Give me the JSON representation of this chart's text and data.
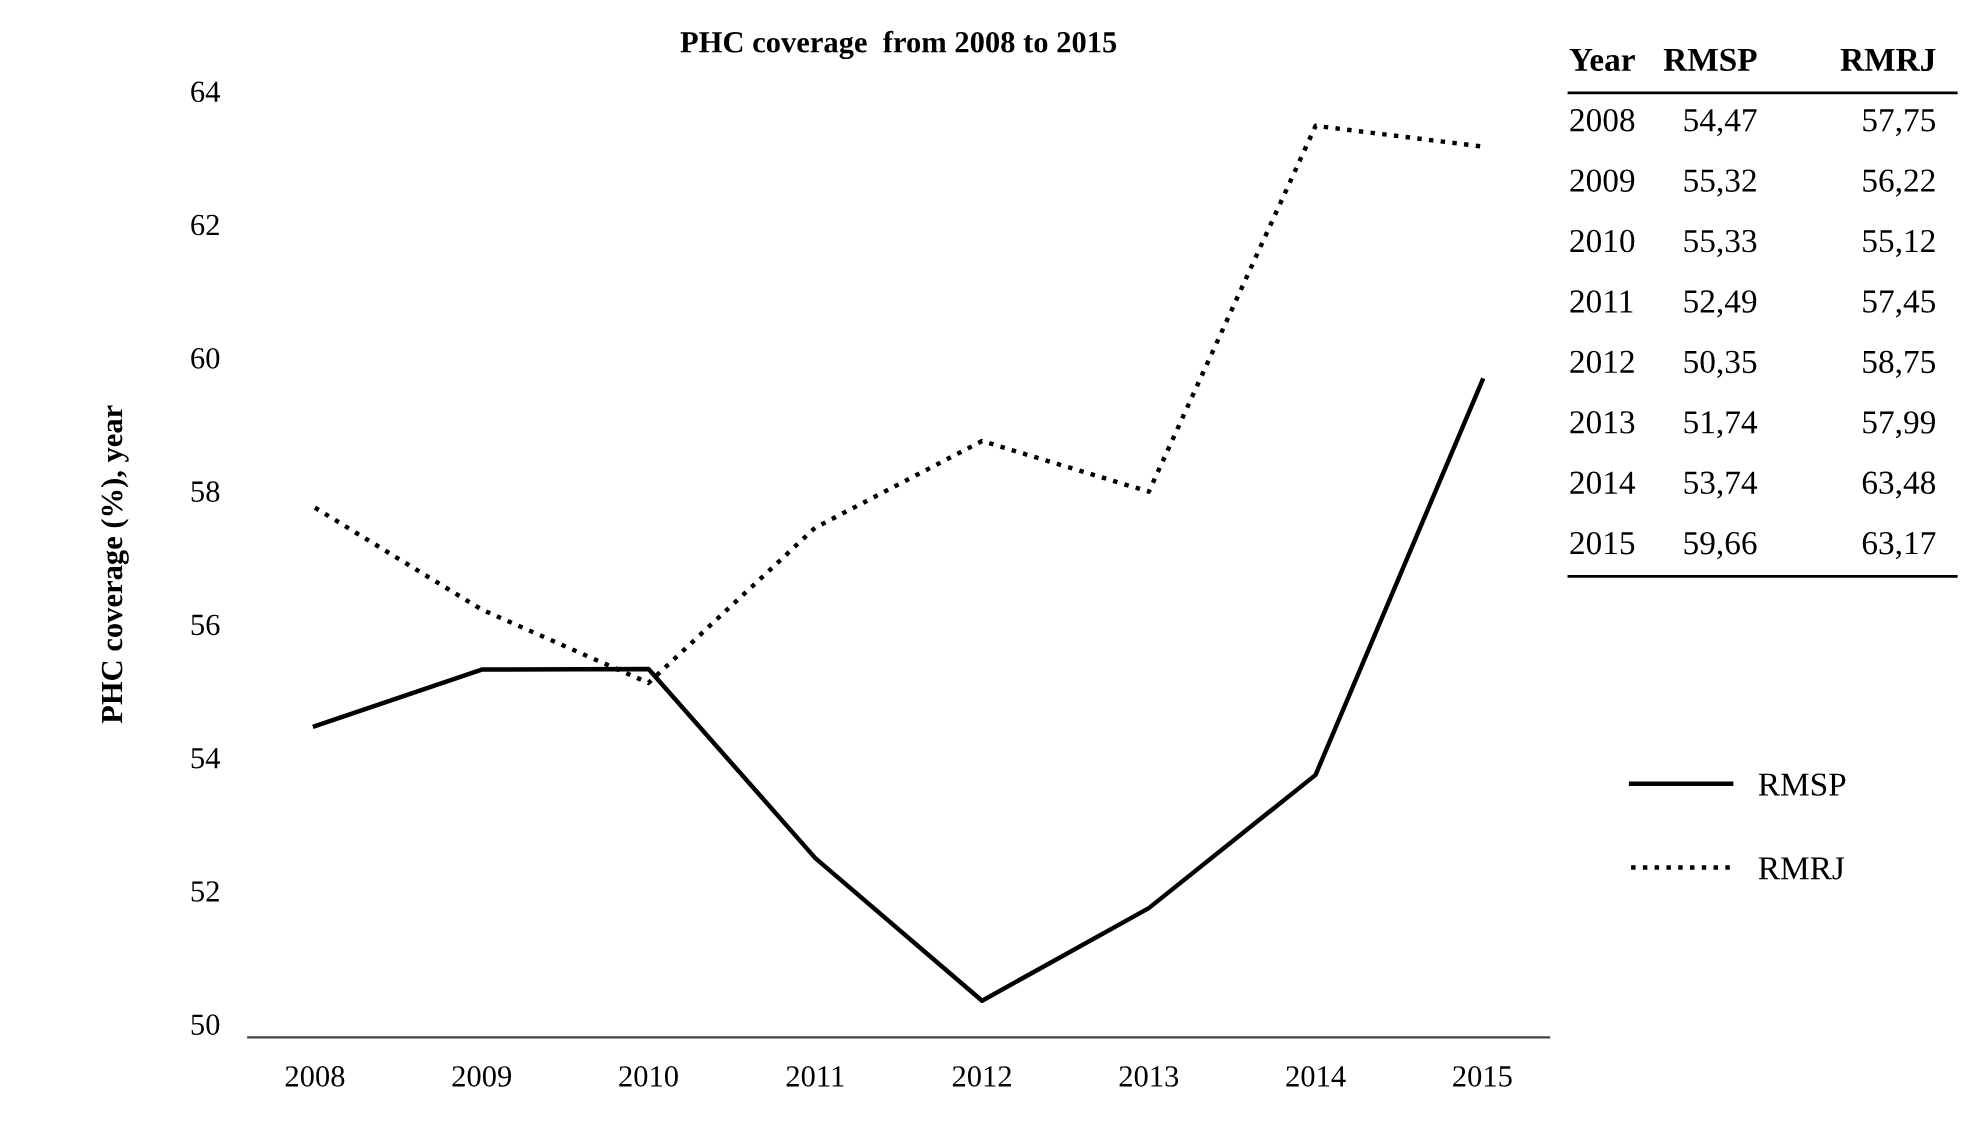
{
  "chart_data": {
    "type": "line",
    "title": "PHC coverage  from 2008 to 2015",
    "ylabel": "PHC coverage (%), year",
    "categories": [
      "2008",
      "2009",
      "2010",
      "2011",
      "2012",
      "2013",
      "2014",
      "2015"
    ],
    "series": [
      {
        "name": "RMSP",
        "color": "#000000",
        "line_style": "solid",
        "values": [
          54.47,
          55.32,
          55.33,
          52.49,
          50.35,
          51.74,
          53.74,
          59.66
        ]
      },
      {
        "name": "RMRJ",
        "color": "#000000",
        "line_style": "dotted",
        "values": [
          57.75,
          56.22,
          55.12,
          57.45,
          58.75,
          57.99,
          63.48,
          63.17
        ]
      }
    ],
    "annotations": [
      "Year",
      "54,47",
      "57,75",
      "55,32",
      "56,22",
      "55,33",
      "55,12",
      "52,49",
      "57,45",
      "50,35",
      "58,75",
      "51,74",
      "57,99",
      "53,74",
      "63,48",
      "59,66",
      "63,17"
    ],
    "ylim": [
      49.8,
      64
    ],
    "yticks": [
      50,
      52,
      54,
      56,
      58,
      60,
      62,
      64
    ],
    "grid": false,
    "legend": "right"
  }
}
